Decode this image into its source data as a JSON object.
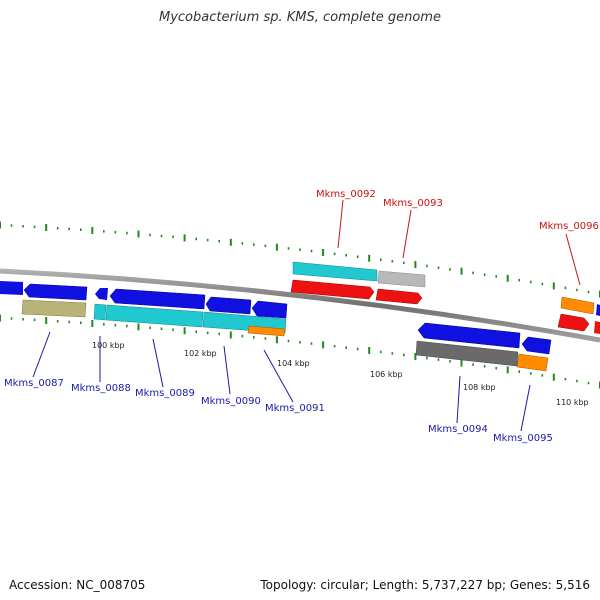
{
  "title": "Mycobacterium sp. KMS, complete genome",
  "footer": {
    "accession": "Accession: NC_008705",
    "summary": "Topology: circular; Length: 5,737,227 bp; Genes: 5,516"
  },
  "colors": {
    "blue": "#1010e0",
    "cyan": "#20c8d0",
    "red": "#ee1111",
    "grey": "#b8b8b8",
    "darkgrey": "#6a6a6a",
    "olive": "#b8b478",
    "orange": "#ff8c00",
    "tick": "#228822",
    "label_blue": "#1a1aa8",
    "label_red": "#cc1111"
  },
  "scale_labels": [
    "100 kbp",
    "102 kbp",
    "104 kbp",
    "106 kbp",
    "108 kbp",
    "110 kbp"
  ],
  "gene_labels": [
    {
      "text": "Mkms_0087",
      "strand": "minus"
    },
    {
      "text": "Mkms_0088",
      "strand": "minus"
    },
    {
      "text": "Mkms_0089",
      "strand": "minus"
    },
    {
      "text": "Mkms_0090",
      "strand": "minus"
    },
    {
      "text": "Mkms_0091",
      "strand": "minus"
    },
    {
      "text": "Mkms_0092",
      "strand": "plus"
    },
    {
      "text": "Mkms_0093",
      "strand": "plus"
    },
    {
      "text": "Mkms_0094",
      "strand": "minus"
    },
    {
      "text": "Mkms_0095",
      "strand": "minus"
    },
    {
      "text": "Mkms_0096",
      "strand": "plus"
    }
  ]
}
